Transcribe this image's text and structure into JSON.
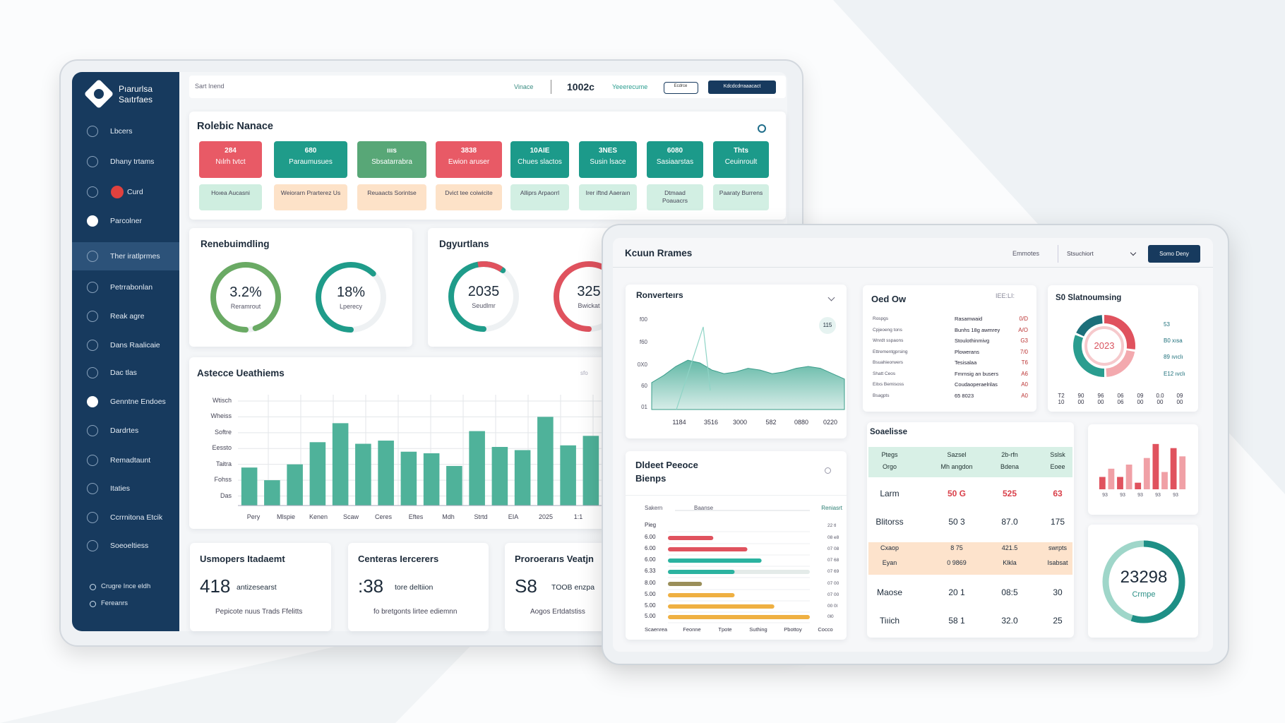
{
  "sidebar": {
    "brand": [
      "Pıarurlsa",
      "Saıtrfaes"
    ],
    "items": [
      "Lbcers",
      "Dhany trtams",
      "Curd",
      "Parcolner",
      "Ther iratlprmes",
      "Petrrabonlan",
      "Reak agre",
      "Dans Raalicaie",
      "Dac tlas",
      "Genntne Endoes",
      "Dardrtes",
      "Remadtaunt",
      "Itaties",
      "Ccrrnitona Etcik",
      "Soeoeltiess"
    ],
    "footer": [
      "Crugre Ince eldh",
      "Fereanrs"
    ]
  },
  "topbar": {
    "search": "Sart Inend",
    "label": "Vinace",
    "value": "1002c",
    "link": "Yeeerecume",
    "outline_button": "Ecdrce",
    "button": "Kdcdcdrraaacact"
  },
  "kpi": {
    "title": "Rolebic Nanace",
    "tiles": [
      {
        "value": "284",
        "label": "Nılrh tvtct"
      },
      {
        "value": "680",
        "label": "Paraumusues"
      },
      {
        "value": "ıııs",
        "label": "Sbsatarrabra"
      },
      {
        "value": "3838",
        "label": "Ewion aruser"
      },
      {
        "value": "10AIE",
        "label": "Chues slactos"
      },
      {
        "value": "3NES",
        "label": "Susin lsace"
      },
      {
        "value": "6080",
        "label": "Sasiaarstas"
      },
      {
        "value": "Thts",
        "label": "Ceuinroult"
      }
    ],
    "subtiles": [
      "Hoıea Aucasni",
      "Weiorarn Prarterez Us",
      "Reuaacts Sorintse",
      "Dvict tee coiwicite",
      "Alliprs Arpaorrl",
      "Irer iftnd Aaeraın",
      "Dtmaad Poauacrs",
      "Paaraty Burrens"
    ]
  },
  "gauges": [
    {
      "title": "Renebuimdling",
      "items": [
        {
          "value": "3.2%",
          "label": "Reramrout"
        },
        {
          "value": "18%",
          "label": "Lperecy"
        }
      ]
    },
    {
      "title": "Dgyurtlans",
      "items": [
        {
          "value": "2035",
          "label": "Seudlmr"
        },
        {
          "value": "325",
          "label": "Bwickat"
        }
      ]
    }
  ],
  "weekly": {
    "type": "bar",
    "title": "Astecce Ueathiems",
    "icon": "sfo",
    "ylabels": [
      "Wtisch",
      "Wheiss",
      "Softre",
      "Eessto",
      "Taitra",
      "Fohss",
      "Das"
    ],
    "xlabels": [
      "Pery",
      "Mlspie",
      "Kenen",
      "Scaw",
      "Ceres",
      "Eftes",
      "Mdh",
      "Strtd",
      "EIA",
      "2025",
      "1:1"
    ],
    "values": [
      2.4,
      1.6,
      2.6,
      4.0,
      5.2,
      3.9,
      4.1,
      3.4,
      3.3,
      2.5,
      4.7,
      3.7,
      3.5,
      5.6,
      3.8,
      4.4
    ],
    "ylim": [
      0,
      7
    ],
    "color": "#4fb29a"
  },
  "cards": [
    {
      "title": "Usmopers Itadaemt",
      "value": "418",
      "unit": "antizesearst",
      "note": "Pepicote nuus Trads Ffelitts"
    },
    {
      "title": "Centeras Iercerers",
      "value": ":38",
      "unit": "tore deltiion",
      "note": "fo bretgonts lirtee ediemnn"
    },
    {
      "title": "Proroerarıs Veatjn",
      "value": "S8",
      "unit": "TOOB enzpa",
      "note": "Aogos Ertdatstiss"
    }
  ],
  "front": {
    "title": "Kcuun Rrames",
    "filter": "Emmotes",
    "select": "Stsuchiort",
    "button": "Somo Deny"
  },
  "area": {
    "type": "area",
    "title": "Ronverteırs",
    "badge": "115",
    "ylabels": [
      "f00",
      "f60",
      "0X0",
      "60",
      "01"
    ],
    "xlabels": [
      "1184",
      "3516",
      "3000",
      "582",
      "0880",
      "0220"
    ],
    "values": [
      30,
      38,
      48,
      55,
      52,
      44,
      40,
      42,
      46,
      44,
      40,
      42,
      46,
      48,
      46,
      40,
      34
    ],
    "ylim": [
      0,
      100
    ],
    "color": "#5bb5a2"
  },
  "list": {
    "title": "Oed Ow",
    "tag": "IEE:LI:",
    "rows": [
      [
        "Rospgs",
        "Rasamwaid",
        "0/D"
      ],
      [
        "Cpjeoeng tons",
        "Bunhs 18g awmrey",
        "A/O"
      ],
      [
        "Wnrdt sspaons",
        "Stoulothinmivg",
        "G3"
      ],
      [
        "Ettrementgprsing",
        "Plowerans",
        "7/0"
      ],
      [
        "Bsuahieorwers",
        "Tesisalaa",
        "T6"
      ],
      [
        "Shatt Ceos",
        "Fmrnsig an busers",
        "A6"
      ],
      [
        "Eitxs Bemisoss",
        "Coudaoperaelrilas",
        "A0"
      ],
      [
        "Bsagpts",
        "65 8023",
        "A0"
      ]
    ]
  },
  "donut": {
    "type": "pie",
    "title": "S0 Slatnoumsing",
    "center": "2023",
    "values": [
      28,
      22,
      32,
      18
    ],
    "colors": [
      "#e0525e",
      "#f3a9ae",
      "#2a9d8f",
      "#1d6f7a"
    ],
    "legend": [
      "53",
      "B0 xısa",
      "89 ıvıclı",
      "E12 ıvclı"
    ],
    "xlabels": [
      "T2 10",
      "90 00",
      "96 00",
      "06 06",
      "09 00",
      "0.0 00",
      "09 00"
    ]
  },
  "hbars": {
    "type": "hbar",
    "title": [
      "Dldeet Peeoce",
      "Bienps"
    ],
    "header": [
      "Sakern",
      "Baanse",
      "Reniasrt"
    ],
    "categories": [
      "Pieg",
      "6.00",
      "6.00",
      "6.00",
      "6.33",
      "8.00",
      "5.00",
      "5.00",
      "5.00"
    ],
    "values": [
      null,
      32,
      56,
      66,
      47,
      24,
      47,
      75,
      100
    ],
    "colors": [
      "#e0525e",
      "#e0525e",
      "#e0525e",
      "#2bb3a0",
      "#2bb3a0",
      "#9a8f5a",
      "#efb042",
      "#efb042",
      "#efb042"
    ],
    "right_labels": [
      "22 tl",
      "08 e8",
      "07 08",
      "07 68",
      "07 69",
      "07 00",
      "07 00",
      "00 0l",
      "0l0"
    ],
    "xlim": [
      0,
      100
    ],
    "footer": [
      "Scaenrea",
      "Feonne",
      "Tpote",
      "Suthing",
      "Pbottoy",
      "Cocco"
    ]
  },
  "table": {
    "title": "Soaelisse",
    "header": [
      [
        "Ptegs",
        "Sazsel",
        "2b-rfn",
        "Sslsk"
      ],
      [
        "Orgo",
        "Mh angdon",
        "Bdena",
        "Eoee"
      ]
    ],
    "rows": [
      [
        "Larm",
        "50 G",
        "525",
        "63"
      ],
      [
        "Blitorss",
        "50 3",
        "87.0",
        "175"
      ],
      [
        "Cxaop",
        "8 75",
        "421.5",
        "swrpts"
      ],
      [
        "Eyan",
        "0 9869",
        "Klkla",
        "Isabsat"
      ],
      [
        "Maose",
        "20 1",
        "08:5",
        "30"
      ],
      [
        "Tiıich",
        "58 1",
        "32.0",
        "25"
      ]
    ]
  },
  "mini": {
    "type": "bar",
    "values": [
      15,
      25,
      15,
      30,
      8,
      38,
      55,
      21,
      50,
      40
    ],
    "colors": [
      "#e0525e",
      "#f0a0a6"
    ],
    "ylim": [
      0,
      60
    ],
    "xlabels": [
      "93",
      "93",
      "93",
      "93",
      "93"
    ]
  },
  "ring": {
    "value": "23298",
    "label": "Crmpe"
  }
}
